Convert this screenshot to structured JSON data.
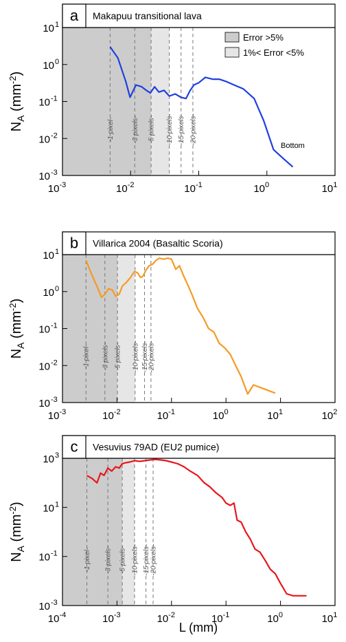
{
  "x_axis_label": {
    "base": "L",
    "unit": " (mm)"
  },
  "chart_data": [
    {
      "type": "line",
      "panel_letter": "a",
      "title": "Makapuu transitional lava",
      "ylabel": {
        "base": "N",
        "sub": "A",
        "unit_open": " (mm",
        "sup": "-2",
        "unit_close": ")"
      },
      "xscale": "log",
      "yscale": "log",
      "xlim": [
        0.001,
        10
      ],
      "ylim": [
        0.001,
        10
      ],
      "x_ticks": [
        {
          "v": 0.001,
          "m": "-3"
        },
        {
          "v": 0.01,
          "m": "-2"
        },
        {
          "v": 0.1,
          "m": "-1"
        },
        {
          "v": 1,
          "m": "0"
        },
        {
          "v": 10,
          "m": "1"
        }
      ],
      "y_ticks": [
        {
          "v": 0.001,
          "m": "-3"
        },
        {
          "v": 0.01,
          "m": "-2"
        },
        {
          "v": 0.1,
          "m": "-1"
        },
        {
          "v": 1,
          "m": "0"
        },
        {
          "v": 10,
          "m": "1"
        }
      ],
      "line_color": "#1f3fe0",
      "error_regions": [
        {
          "from": 0.001,
          "to": 0.02,
          "label": "Error >5%",
          "color": "#cccccc"
        },
        {
          "from": 0.02,
          "to": 0.037,
          "label": "1%< Error <5%",
          "color": "#e6e6e6"
        }
      ],
      "guide_lines": [
        {
          "x": 0.005,
          "label": "1 pixel"
        },
        {
          "x": 0.0115,
          "label": "3 pixels"
        },
        {
          "x": 0.02,
          "label": "5 pixels"
        },
        {
          "x": 0.037,
          "label": "10 pixels"
        },
        {
          "x": 0.055,
          "label": "15 pixels"
        },
        {
          "x": 0.082,
          "label": "20 pixels"
        }
      ],
      "legend": {
        "position": "top-right",
        "entries": [
          {
            "label": "Error >5%",
            "color": "#cccccc"
          },
          {
            "label": "1%< Error <5%",
            "color": "#e6e6e6"
          }
        ]
      },
      "annotations": [
        {
          "text": "Bottom",
          "x": 1.6,
          "y": 0.0055
        }
      ],
      "x": [
        0.005,
        0.0065,
        0.0085,
        0.0098,
        0.012,
        0.0145,
        0.017,
        0.0195,
        0.0225,
        0.026,
        0.031,
        0.037,
        0.045,
        0.055,
        0.065,
        0.075,
        0.085,
        0.1,
        0.125,
        0.16,
        0.2,
        0.25,
        0.33,
        0.45,
        0.65,
        0.9,
        1.25,
        1.7,
        2.4
      ],
      "y": [
        3.0,
        1.5,
        0.35,
        0.13,
        0.28,
        0.25,
        0.2,
        0.17,
        0.25,
        0.18,
        0.2,
        0.14,
        0.16,
        0.13,
        0.12,
        0.2,
        0.28,
        0.32,
        0.45,
        0.4,
        0.4,
        0.35,
        0.28,
        0.22,
        0.12,
        0.03,
        0.005,
        0.003,
        0.0017
      ]
    },
    {
      "type": "line",
      "panel_letter": "b",
      "title": "Villarica 2004 (Basaltic Scoria)",
      "ylabel": {
        "base": "N",
        "sub": "A",
        "unit_open": " (mm",
        "sup": "-2",
        "unit_close": ")"
      },
      "xscale": "log",
      "yscale": "log",
      "xlim": [
        0.001,
        100
      ],
      "ylim": [
        0.001,
        10
      ],
      "x_ticks": [
        {
          "v": 0.001,
          "m": "-3"
        },
        {
          "v": 0.01,
          "m": "-2"
        },
        {
          "v": 0.1,
          "m": "-1"
        },
        {
          "v": 1,
          "m": "0"
        },
        {
          "v": 10,
          "m": "1"
        },
        {
          "v": 100,
          "m": "2"
        }
      ],
      "y_ticks": [
        {
          "v": 0.001,
          "m": "-3"
        },
        {
          "v": 0.01,
          "m": "-2"
        },
        {
          "v": 0.1,
          "m": "-1"
        },
        {
          "v": 1,
          "m": "0"
        },
        {
          "v": 10,
          "m": "1"
        }
      ],
      "line_color": "#f59a23",
      "error_regions": [
        {
          "from": 0.001,
          "to": 0.0102,
          "color": "#cccccc"
        },
        {
          "from": 0.0102,
          "to": 0.0215,
          "color": "#e6e6e6"
        }
      ],
      "guide_lines": [
        {
          "x": 0.0027,
          "label": "1 pixel"
        },
        {
          "x": 0.006,
          "label": "3 pixels"
        },
        {
          "x": 0.0102,
          "label": "5 pixels"
        },
        {
          "x": 0.0215,
          "label": "10 pixels"
        },
        {
          "x": 0.032,
          "label": "15 pixels"
        },
        {
          "x": 0.042,
          "label": "20 pixels"
        }
      ],
      "x": [
        0.0027,
        0.0034,
        0.0042,
        0.0052,
        0.006,
        0.007,
        0.0082,
        0.0095,
        0.011,
        0.0125,
        0.015,
        0.018,
        0.021,
        0.024,
        0.027,
        0.03,
        0.034,
        0.039,
        0.045,
        0.052,
        0.06,
        0.072,
        0.085,
        0.1,
        0.12,
        0.14,
        0.17,
        0.2,
        0.24,
        0.3,
        0.38,
        0.48,
        0.6,
        0.75,
        0.95,
        1.2,
        1.5,
        1.9,
        2.5,
        3.2,
        8.0
      ],
      "y": [
        7.0,
        3.0,
        1.5,
        0.7,
        0.85,
        1.2,
        1.1,
        0.75,
        0.85,
        1.4,
        1.8,
        2.5,
        3.5,
        3.2,
        2.4,
        2.6,
        3.8,
        5.0,
        5.5,
        7.0,
        8.0,
        7.5,
        8.0,
        7.5,
        4.0,
        5.0,
        2.5,
        1.5,
        0.8,
        0.35,
        0.2,
        0.1,
        0.08,
        0.04,
        0.03,
        0.02,
        0.01,
        0.005,
        0.0017,
        0.003,
        0.0018
      ]
    },
    {
      "type": "line",
      "panel_letter": "c",
      "title": "Vesuvius 79AD (EU2 pumice)",
      "ylabel": {
        "base": "N",
        "sub": "A",
        "unit_open": " (mm",
        "sup": "-2",
        "unit_close": ")"
      },
      "xscale": "log",
      "yscale": "log",
      "xlim": [
        0.0001,
        10
      ],
      "ylim": [
        0.001,
        1000
      ],
      "x_ticks": [
        {
          "v": 0.0001,
          "m": "-4"
        },
        {
          "v": 0.001,
          "m": "-3"
        },
        {
          "v": 0.01,
          "m": "-2"
        },
        {
          "v": 0.1,
          "m": "-1"
        },
        {
          "v": 1,
          "m": "0"
        },
        {
          "v": 10,
          "m": "1"
        }
      ],
      "y_ticks": [
        {
          "v": 0.001,
          "m": "-3"
        },
        {
          "v": 0.1,
          "m": "-1"
        },
        {
          "v": 10,
          "m": "1"
        },
        {
          "v": 1000,
          "m": "3"
        }
      ],
      "line_color": "#e8161b",
      "error_regions": [
        {
          "from": 0.0001,
          "to": 0.00125,
          "color": "#cccccc"
        },
        {
          "from": 0.00125,
          "to": 0.0021,
          "color": "#e6e6e6"
        }
      ],
      "guide_lines": [
        {
          "x": 0.00028,
          "label": "1 pixel"
        },
        {
          "x": 0.00068,
          "label": "3 pixels"
        },
        {
          "x": 0.00125,
          "label": "5 pixels"
        },
        {
          "x": 0.0021,
          "label": "10 pixels"
        },
        {
          "x": 0.0034,
          "label": "15 pixels"
        },
        {
          "x": 0.0046,
          "label": "20 pixels"
        }
      ],
      "x": [
        0.00028,
        0.00035,
        0.00043,
        0.0005,
        0.00058,
        0.00068,
        0.0008,
        0.00095,
        0.0011,
        0.00125,
        0.0014,
        0.0017,
        0.0021,
        0.0026,
        0.0032,
        0.004,
        0.005,
        0.0065,
        0.008,
        0.01,
        0.013,
        0.017,
        0.022,
        0.03,
        0.04,
        0.05,
        0.065,
        0.085,
        0.1,
        0.12,
        0.14,
        0.16,
        0.19,
        0.23,
        0.28,
        0.34,
        0.42,
        0.52,
        0.65,
        0.8,
        1.0,
        1.3,
        1.7,
        3.0
      ],
      "y": [
        200,
        150,
        100,
        250,
        200,
        400,
        300,
        450,
        400,
        600,
        650,
        700,
        800,
        750,
        800,
        850,
        900,
        850,
        800,
        700,
        600,
        450,
        300,
        200,
        100,
        70,
        40,
        25,
        15,
        12,
        15,
        3,
        2.5,
        1.0,
        0.5,
        0.2,
        0.15,
        0.07,
        0.03,
        0.02,
        0.008,
        0.003,
        0.0025,
        0.0025
      ]
    }
  ]
}
